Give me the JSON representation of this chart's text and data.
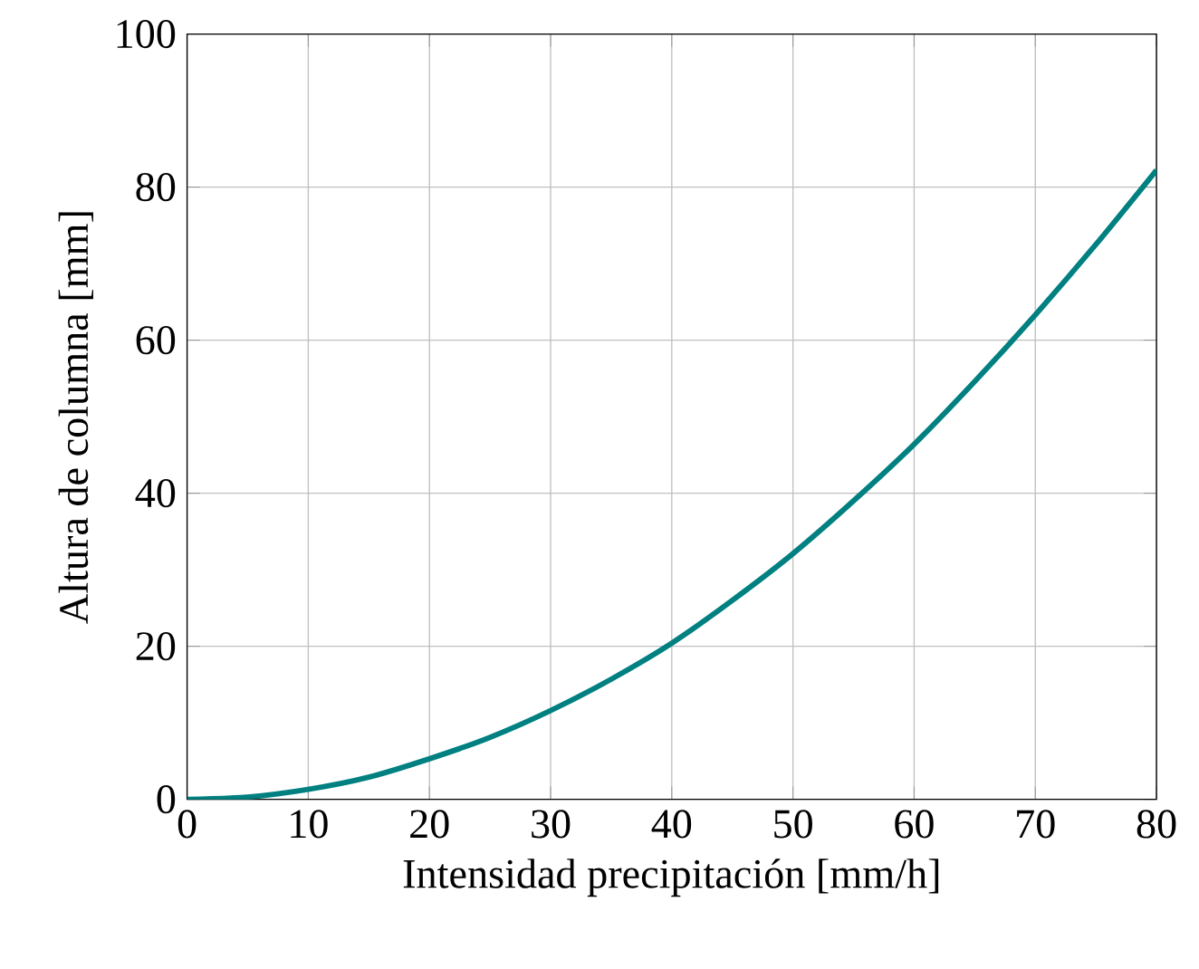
{
  "chart_data": {
    "type": "line",
    "xlabel": "Intensidad precipitación [mm/h]",
    "ylabel": "Altura de columna [mm]",
    "x": [
      0,
      5,
      10,
      15,
      20,
      25,
      30,
      35,
      40,
      45,
      50,
      55,
      60,
      65,
      70,
      75,
      80
    ],
    "series": [
      {
        "color": "#008080",
        "values": [
          0,
          0.3,
          1.3,
          2.9,
          5.3,
          8.1,
          11.6,
          15.7,
          20.4,
          26.0,
          32.1,
          39.0,
          46.4,
          54.6,
          63.3,
          72.5,
          82.2
        ]
      }
    ],
    "xlim": [
      0,
      80
    ],
    "ylim": [
      0,
      100
    ],
    "xticks": [
      0,
      10,
      20,
      30,
      40,
      50,
      60,
      70,
      80
    ],
    "yticks": [
      0,
      20,
      40,
      60,
      80,
      100
    ],
    "grid": true,
    "marker": "none",
    "line_style": "solid"
  }
}
